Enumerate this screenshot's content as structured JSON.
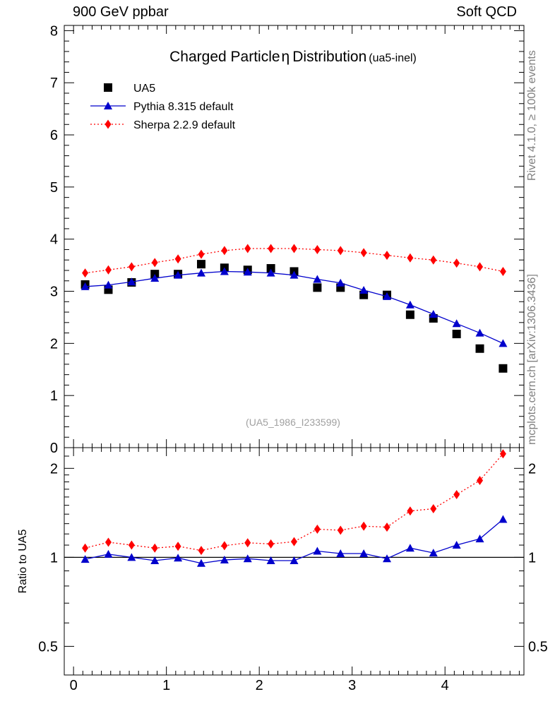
{
  "header": {
    "left": "900 GeV ppbar",
    "right": "Soft QCD"
  },
  "side_labels": {
    "rivet": "Rivet 4.1.0, ≥ 100k events",
    "mcplots": "mcplots.cern.ch [arXiv:1306.3436]"
  },
  "chart_data": {
    "type": "line",
    "title": "Charged Particle",
    "title_symbol": "η",
    "title_suffix": "Distribution",
    "title_tag": "(ua5-inel)",
    "analysis_id": "(UA5_1986_I233599)",
    "xlabel": "",
    "ylabel_main": "",
    "ylabel_ratio": "Ratio to UA5",
    "xlim": [
      -0.1,
      4.85
    ],
    "ylim_main": [
      0,
      8.1
    ],
    "ylim_ratio": [
      0.4,
      2.35
    ],
    "ratio_scale": "log",
    "x_ticks": [
      "0",
      "1",
      "2",
      "3",
      "4"
    ],
    "y_ticks_main": [
      "0",
      "1",
      "2",
      "3",
      "4",
      "5",
      "6",
      "7",
      "8"
    ],
    "y_ticks_ratio": [
      "0.5",
      "1",
      "2"
    ],
    "legend_position": "top-left",
    "x": [
      0.125,
      0.375,
      0.625,
      0.875,
      1.125,
      1.375,
      1.625,
      1.875,
      2.125,
      2.375,
      2.625,
      2.875,
      3.125,
      3.375,
      3.625,
      3.875,
      4.125,
      4.375,
      4.625
    ],
    "series": [
      {
        "name": "UA5",
        "style": "data",
        "marker": "square",
        "color": "#000000",
        "values": [
          3.13,
          3.03,
          3.17,
          3.33,
          3.33,
          3.52,
          3.45,
          3.41,
          3.44,
          3.38,
          3.07,
          3.07,
          2.93,
          2.93,
          2.55,
          2.48,
          2.18,
          1.9,
          1.52
        ]
      },
      {
        "name": "Pythia 8.315 default",
        "style": "solid",
        "marker": "triangle",
        "color": "#0000cc",
        "values": [
          3.09,
          3.12,
          3.18,
          3.25,
          3.31,
          3.35,
          3.38,
          3.37,
          3.35,
          3.31,
          3.23,
          3.16,
          3.02,
          2.9,
          2.74,
          2.56,
          2.38,
          2.2,
          2.0
        ],
        "ratio": [
          0.985,
          1.025,
          1.0,
          0.975,
          0.995,
          0.955,
          0.98,
          0.99,
          0.975,
          0.975,
          1.05,
          1.03,
          1.03,
          0.99,
          1.075,
          1.035,
          1.1,
          1.155,
          1.345
        ]
      },
      {
        "name": "Sherpa 2.2.9 default",
        "style": "dotted",
        "marker": "diamond",
        "color": "#ff0000",
        "values": [
          3.35,
          3.41,
          3.47,
          3.55,
          3.62,
          3.71,
          3.78,
          3.82,
          3.82,
          3.82,
          3.8,
          3.78,
          3.74,
          3.69,
          3.64,
          3.6,
          3.54,
          3.47,
          3.38
        ],
        "ratio": [
          1.075,
          1.125,
          1.1,
          1.075,
          1.09,
          1.055,
          1.095,
          1.12,
          1.11,
          1.13,
          1.245,
          1.235,
          1.275,
          1.265,
          1.435,
          1.46,
          1.63,
          1.82,
          2.24
        ]
      }
    ]
  }
}
